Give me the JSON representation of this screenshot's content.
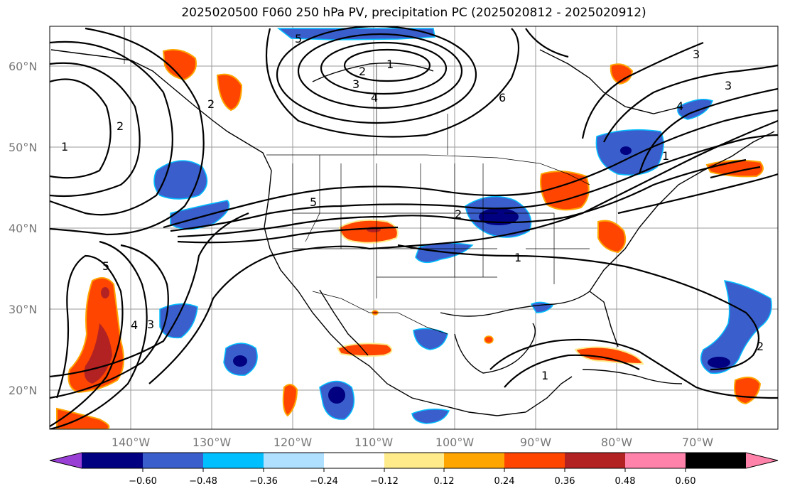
{
  "title": "2025020500 F060 250 hPa PV, precipitation PC (2025020812 - 2025020912)",
  "lat_labels": [
    "60°N",
    "50°N",
    "40°N",
    "30°N",
    "20°N"
  ],
  "lon_labels": [
    "140°W",
    "130°W",
    "120°W",
    "110°W",
    "100°W",
    "90°W",
    "80°W",
    "70°W"
  ],
  "colorbar": {
    "colors": [
      "#9a3fd6",
      "#000080",
      "#3a5fcd",
      "#00bfff",
      "#b0e0ff",
      "#ffffff",
      "#ffeb8a",
      "#ffa500",
      "#ff4500",
      "#b22222",
      "#ff82ab"
    ],
    "tick_labels": [
      "−0.60",
      "−0.48",
      "−0.36",
      "−0.24",
      "−0.12",
      "0.12",
      "0.24",
      "0.36",
      "0.48",
      "0.60"
    ]
  },
  "contour_labels": [
    "1",
    "2",
    "3",
    "4",
    "5",
    "6",
    "1",
    "2",
    "3",
    "4",
    "5",
    "1",
    "2",
    "1",
    "2",
    "3",
    "1",
    "2",
    "3",
    "4",
    "5"
  ]
}
